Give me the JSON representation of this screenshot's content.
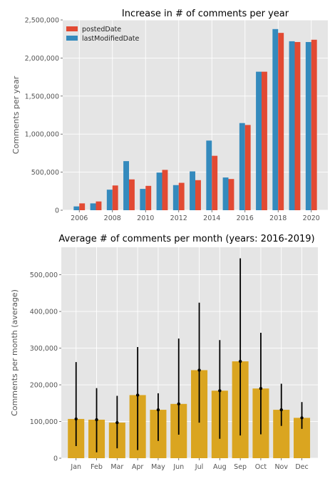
{
  "colors": {
    "panel_bg": "#e5e5e5",
    "grid": "#ffffff",
    "posted": "#e24a33",
    "modified": "#348abd",
    "bar_gold": "#daa520",
    "error": "#000000"
  },
  "chart_data": [
    {
      "type": "bar",
      "title": "Increase in # of comments per year",
      "xlabel": "",
      "ylabel": "Comments per year",
      "ylim": [
        0,
        2500000
      ],
      "yticks": [
        0,
        500000,
        1000000,
        1500000,
        2000000,
        2500000
      ],
      "ytick_labels": [
        "0",
        "500,000",
        "1,000,000",
        "1,500,000",
        "2,000,000",
        "2,500,000"
      ],
      "xticks": [
        2006,
        2008,
        2010,
        2012,
        2014,
        2016,
        2018,
        2020
      ],
      "xtick_labels": [
        "2006",
        "2008",
        "2010",
        "2012",
        "2014",
        "2016",
        "2018",
        "2020"
      ],
      "xlim": [
        2005,
        2021
      ],
      "grid": true,
      "legend_position": "top-left",
      "categories": [
        2006,
        2007,
        2008,
        2009,
        2010,
        2011,
        2012,
        2013,
        2014,
        2015,
        2016,
        2017,
        2018,
        2019,
        2020
      ],
      "series": [
        {
          "name": "postedDate",
          "color": "#e24a33",
          "values": [
            90000,
            115000,
            325000,
            405000,
            320000,
            530000,
            360000,
            395000,
            715000,
            410000,
            1120000,
            1820000,
            2330000,
            2210000,
            2240000
          ]
        },
        {
          "name": "lastModifiedDate",
          "color": "#348abd",
          "values": [
            50000,
            90000,
            270000,
            645000,
            280000,
            495000,
            330000,
            510000,
            915000,
            430000,
            1145000,
            1820000,
            2380000,
            2220000,
            2210000
          ]
        }
      ]
    },
    {
      "type": "bar",
      "title": "Average # of comments per month (years: 2016-2019)",
      "xlabel": "",
      "ylabel": "Comments per month (average)",
      "ylim": [
        0,
        575000
      ],
      "yticks": [
        0,
        100000,
        200000,
        300000,
        400000,
        500000
      ],
      "ytick_labels": [
        "0",
        "100,000",
        "200,000",
        "300,000",
        "400,000",
        "500,000"
      ],
      "grid": true,
      "categories": [
        "Jan",
        "Feb",
        "Mar",
        "Apr",
        "May",
        "Jun",
        "Jul",
        "Aug",
        "Sep",
        "Oct",
        "Nov",
        "Dec"
      ],
      "values": [
        107000,
        105000,
        97000,
        172000,
        132000,
        148000,
        240000,
        184000,
        264000,
        190000,
        132000,
        110000
      ],
      "error_low": [
        33000,
        16000,
        27000,
        22000,
        47000,
        64000,
        97000,
        53000,
        62000,
        65000,
        88000,
        80000
      ],
      "error_high": [
        262000,
        191000,
        170000,
        303000,
        177000,
        326000,
        424000,
        322000,
        545000,
        342000,
        203000,
        153000
      ],
      "color": "#daa520"
    }
  ]
}
